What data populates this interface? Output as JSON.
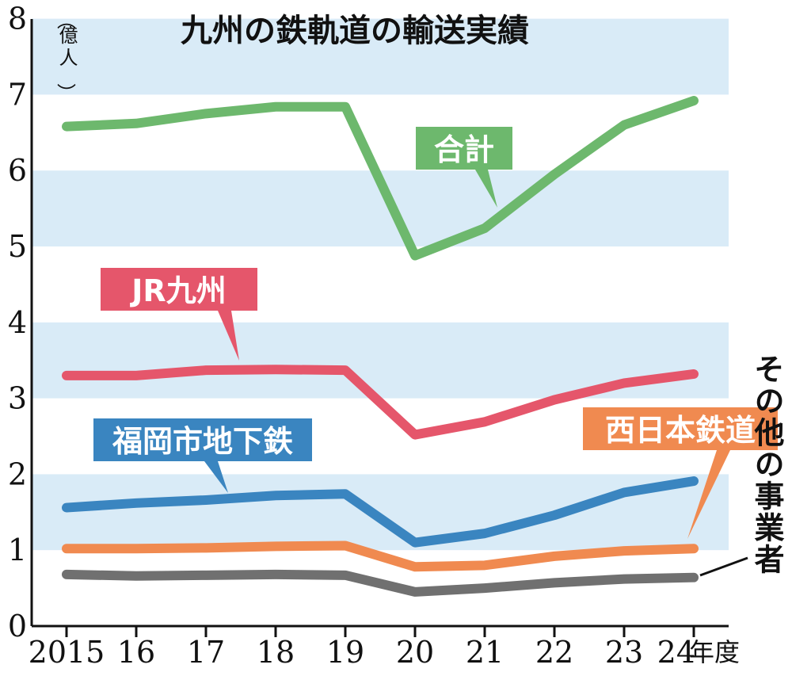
{
  "chart_data": {
    "type": "line",
    "title": "九州の鉄軌道の輸送実績",
    "ylabel": "億人",
    "xlabel": "年度",
    "categories": [
      "2015",
      "16",
      "17",
      "18",
      "19",
      "20",
      "21",
      "22",
      "23",
      "24"
    ],
    "ylim": [
      0,
      8
    ],
    "yticks": [
      "0",
      "1",
      "2",
      "3",
      "4",
      "5",
      "6",
      "7",
      "8"
    ],
    "grid": "alternating horizontal bands",
    "series": [
      {
        "name": "合計",
        "color": "#6db86d",
        "values": [
          6.58,
          6.62,
          6.75,
          6.84,
          6.84,
          4.88,
          5.24,
          5.95,
          6.6,
          6.92
        ]
      },
      {
        "name": "JR九州",
        "color": "#e5566b",
        "values": [
          3.3,
          3.3,
          3.37,
          3.38,
          3.37,
          2.52,
          2.69,
          2.98,
          3.2,
          3.32
        ]
      },
      {
        "name": "福岡市地下鉄",
        "color": "#3a85c0",
        "values": [
          1.56,
          1.62,
          1.66,
          1.72,
          1.74,
          1.1,
          1.22,
          1.46,
          1.76,
          1.91
        ]
      },
      {
        "name": "西日本鉄道",
        "color": "#f08a50",
        "values": [
          1.02,
          1.02,
          1.03,
          1.05,
          1.06,
          0.78,
          0.8,
          0.92,
          0.99,
          1.02
        ]
      },
      {
        "name": "その他の事業者",
        "color": "#707070",
        "values": [
          0.68,
          0.66,
          0.67,
          0.68,
          0.67,
          0.45,
          0.5,
          0.57,
          0.62,
          0.64
        ]
      }
    ]
  }
}
